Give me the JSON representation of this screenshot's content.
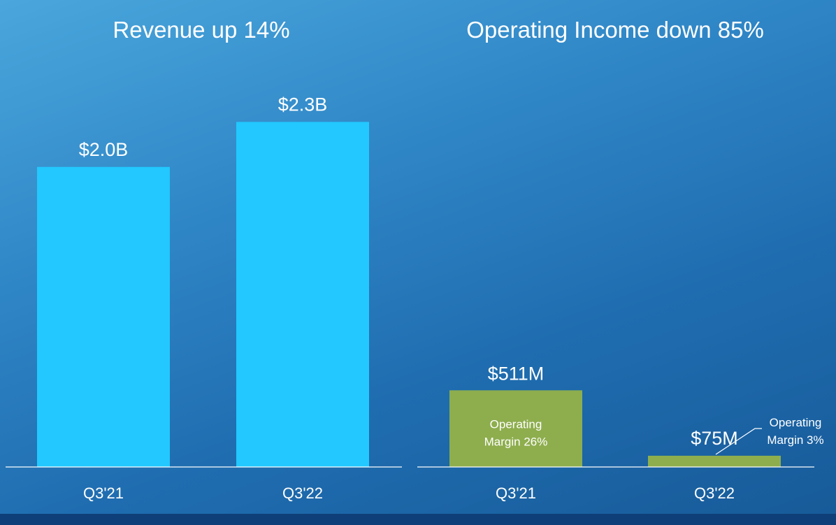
{
  "colors": {
    "revenue_bar": "#22c8ff",
    "income_bar": "#8eae4e",
    "text": "#ffffff",
    "baseline": "#ffffff"
  },
  "chart_data": [
    {
      "type": "bar",
      "title": "Revenue up 14%",
      "categories": [
        "Q3'21",
        "Q3'22"
      ],
      "values": [
        2.0,
        2.3
      ],
      "value_labels": [
        "$2.0B",
        "$2.3B"
      ],
      "unit": "$B",
      "ylim": [
        0,
        2.6
      ],
      "xlabel": "",
      "ylabel": "",
      "grid": false,
      "legend": "none"
    },
    {
      "type": "bar",
      "title": "Operating Income down 85%",
      "categories": [
        "Q3'21",
        "Q3'22"
      ],
      "values": [
        511,
        75
      ],
      "value_labels": [
        "$511M",
        "$75M"
      ],
      "unit": "$M",
      "ylim": [
        0,
        2600
      ],
      "annotations": [
        {
          "category": "Q3'21",
          "lines": [
            "Operating",
            "Margin 26%"
          ]
        },
        {
          "category": "Q3'22",
          "lines": [
            "Operating",
            "Margin 3%"
          ]
        }
      ],
      "xlabel": "",
      "ylabel": "",
      "grid": false,
      "legend": "none"
    }
  ]
}
